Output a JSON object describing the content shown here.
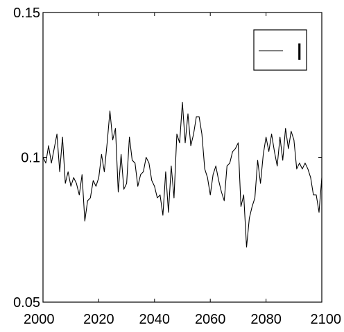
{
  "chart_data": {
    "type": "line",
    "title": "",
    "xlabel": "",
    "ylabel": "",
    "xlim": [
      2000,
      2100
    ],
    "ylim": [
      0.05,
      0.15
    ],
    "x_ticks": [
      2000,
      2020,
      2040,
      2060,
      2080,
      2100
    ],
    "y_ticks": [
      {
        "value": 0.05,
        "label": "0.05"
      },
      {
        "value": 0.1,
        "label": "0.1"
      },
      {
        "value": 0.15,
        "label": "0.15"
      }
    ],
    "grid": false,
    "legend_position": "top-right",
    "line_color": "#000000",
    "series": [
      {
        "name": "I",
        "x": [
          2000,
          2001,
          2002,
          2003,
          2004,
          2005,
          2006,
          2007,
          2008,
          2009,
          2010,
          2011,
          2012,
          2013,
          2014,
          2015,
          2016,
          2017,
          2018,
          2019,
          2020,
          2021,
          2022,
          2023,
          2024,
          2025,
          2026,
          2027,
          2028,
          2029,
          2030,
          2031,
          2032,
          2033,
          2034,
          2035,
          2036,
          2037,
          2038,
          2039,
          2040,
          2041,
          2042,
          2043,
          2044,
          2045,
          2046,
          2047,
          2048,
          2049,
          2050,
          2051,
          2052,
          2053,
          2054,
          2055,
          2056,
          2057,
          2058,
          2059,
          2060,
          2061,
          2062,
          2063,
          2064,
          2065,
          2066,
          2067,
          2068,
          2069,
          2070,
          2071,
          2072,
          2073,
          2074,
          2075,
          2076,
          2077,
          2078,
          2079,
          2080,
          2081,
          2082,
          2083,
          2084,
          2085,
          2086,
          2087,
          2088,
          2089,
          2090,
          2091,
          2092,
          2093,
          2094,
          2095,
          2096,
          2097,
          2098,
          2099,
          2100
        ],
        "values": [
          0.1,
          0.098,
          0.104,
          0.098,
          0.103,
          0.108,
          0.095,
          0.107,
          0.091,
          0.095,
          0.09,
          0.093,
          0.091,
          0.087,
          0.094,
          0.078,
          0.085,
          0.086,
          0.092,
          0.09,
          0.093,
          0.101,
          0.095,
          0.105,
          0.116,
          0.106,
          0.11,
          0.088,
          0.101,
          0.089,
          0.091,
          0.107,
          0.099,
          0.098,
          0.09,
          0.094,
          0.095,
          0.1,
          0.098,
          0.092,
          0.09,
          0.086,
          0.087,
          0.08,
          0.095,
          0.081,
          0.097,
          0.086,
          0.108,
          0.105,
          0.119,
          0.105,
          0.115,
          0.104,
          0.108,
          0.114,
          0.114,
          0.108,
          0.096,
          0.093,
          0.087,
          0.094,
          0.097,
          0.092,
          0.088,
          0.085,
          0.097,
          0.098,
          0.102,
          0.103,
          0.105,
          0.083,
          0.087,
          0.069,
          0.079,
          0.083,
          0.086,
          0.099,
          0.091,
          0.101,
          0.107,
          0.102,
          0.108,
          0.102,
          0.097,
          0.107,
          0.099,
          0.11,
          0.103,
          0.109,
          0.106,
          0.096,
          0.098,
          0.096,
          0.098,
          0.096,
          0.093,
          0.087,
          0.087,
          0.081,
          0.093
        ]
      }
    ]
  }
}
